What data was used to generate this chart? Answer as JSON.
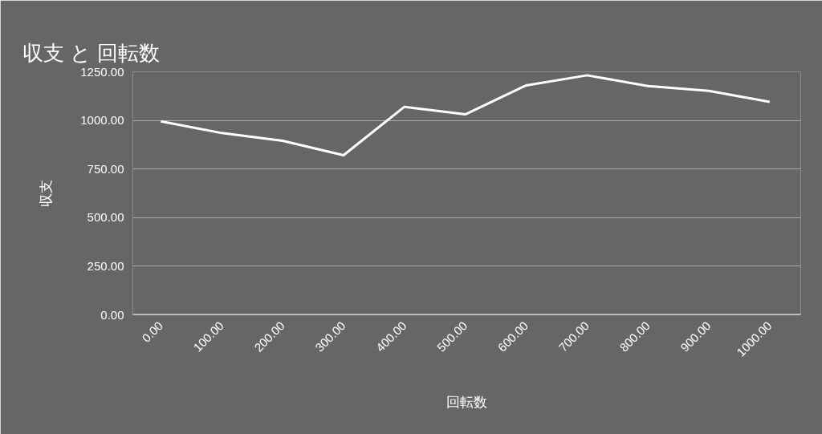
{
  "chart_data": {
    "type": "line",
    "title": "収支 と 回転数",
    "xlabel": "回転数",
    "ylabel": "収支",
    "x": [
      0,
      100,
      200,
      300,
      400,
      500,
      600,
      700,
      800,
      900,
      1000
    ],
    "series": [
      {
        "color": "#ffffff",
        "values": [
          995,
          935,
          895,
          821,
          1070,
          1031,
          1180,
          1232,
          1177,
          1152,
          1095
        ]
      }
    ],
    "xlim": [
      -46,
      1051
    ],
    "ylim": [
      0,
      1250
    ],
    "xticks": [
      {
        "value": 0,
        "label": "0.00"
      },
      {
        "value": 100,
        "label": "100.00"
      },
      {
        "value": 200,
        "label": "200.00"
      },
      {
        "value": 300,
        "label": "300.00"
      },
      {
        "value": 400,
        "label": "400.00"
      },
      {
        "value": 500,
        "label": "500.00"
      },
      {
        "value": 600,
        "label": "600.00"
      },
      {
        "value": 700,
        "label": "700.00"
      },
      {
        "value": 800,
        "label": "800.00"
      },
      {
        "value": 900,
        "label": "900.00"
      },
      {
        "value": 1000,
        "label": "1000.00"
      }
    ],
    "yticks": [
      {
        "value": 0,
        "label": "0.00"
      },
      {
        "value": 250,
        "label": "250.00"
      },
      {
        "value": 500,
        "label": "500.00"
      },
      {
        "value": 750,
        "label": "750.00"
      },
      {
        "value": 1000,
        "label": "1000.00"
      },
      {
        "value": 1250,
        "label": "1250.00"
      }
    ],
    "grid": "y",
    "marker": "none",
    "line_style": "solid"
  }
}
